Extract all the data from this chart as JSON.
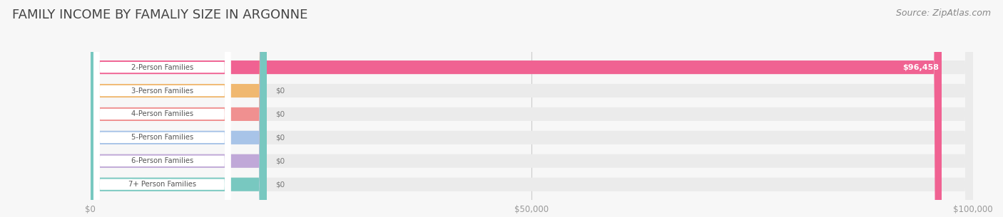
{
  "title": "FAMILY INCOME BY FAMALIY SIZE IN ARGONNE",
  "source": "Source: ZipAtlas.com",
  "categories": [
    "2-Person Families",
    "3-Person Families",
    "4-Person Families",
    "5-Person Families",
    "6-Person Families",
    "7+ Person Families"
  ],
  "values": [
    96458,
    0,
    0,
    0,
    0,
    0
  ],
  "bar_colors": [
    "#f06292",
    "#f0b870",
    "#f09090",
    "#a8c4e8",
    "#c0a8d8",
    "#78c8c0"
  ],
  "value_labels": [
    "$96,458",
    "$0",
    "$0",
    "$0",
    "$0",
    "$0"
  ],
  "xlim": [
    0,
    100000
  ],
  "xticks": [
    0,
    50000,
    100000
  ],
  "xticklabels": [
    "$0",
    "$50,000",
    "$100,000"
  ],
  "background_color": "#f7f7f7",
  "bar_bg_color": "#e8e8e8",
  "title_fontsize": 13,
  "source_fontsize": 9,
  "figsize": [
    14.06,
    3.05
  ],
  "dpi": 100
}
